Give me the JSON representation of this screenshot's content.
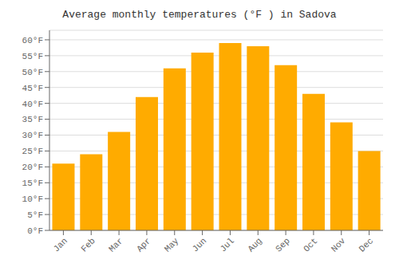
{
  "chart_data": {
    "type": "bar",
    "title": "Average monthly temperatures (°F ) in Sadova",
    "categories": [
      "Jan",
      "Feb",
      "Mar",
      "Apr",
      "May",
      "Jun",
      "Jul",
      "Aug",
      "Sep",
      "Oct",
      "Nov",
      "Dec"
    ],
    "values": [
      21,
      24,
      31,
      42,
      51,
      56,
      59,
      58,
      52,
      43,
      34,
      25
    ],
    "color": "#FFAB00",
    "ylim": [
      0,
      63
    ],
    "yticks": [
      {
        "value": 0,
        "label": "0°F"
      },
      {
        "value": 5,
        "label": "5°F"
      },
      {
        "value": 10,
        "label": "10°F"
      },
      {
        "value": 15,
        "label": "15°F"
      },
      {
        "value": 20,
        "label": "20°F"
      },
      {
        "value": 25,
        "label": "25°F"
      },
      {
        "value": 30,
        "label": "30°F"
      },
      {
        "value": 35,
        "label": "35°F"
      },
      {
        "value": 40,
        "label": "40°F"
      },
      {
        "value": 45,
        "label": "45°F"
      },
      {
        "value": 50,
        "label": "50°F"
      },
      {
        "value": 55,
        "label": "55°F"
      },
      {
        "value": 60,
        "label": "60°F"
      }
    ],
    "grid": true
  }
}
